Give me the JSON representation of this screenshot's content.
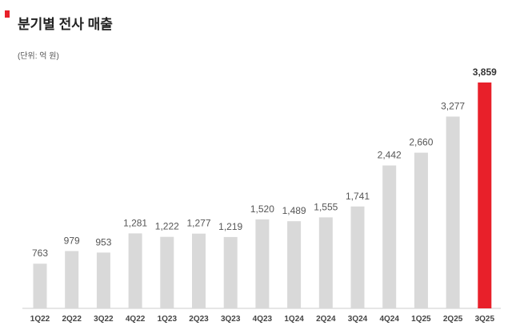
{
  "header": {
    "title": "분기별 전사 매출",
    "unit_note": "(단위: 억 원)"
  },
  "colors": {
    "accent": "#e8202a",
    "bar": "#d9d9d9",
    "highlight_bar": "#e8202a",
    "axis": "#cccccc"
  },
  "chart_data": {
    "type": "bar",
    "title": "분기별 전사 매출",
    "xlabel": "",
    "ylabel": "",
    "ylim": [
      0,
      4000
    ],
    "grid": false,
    "categories": [
      "1Q22",
      "2Q22",
      "3Q22",
      "4Q22",
      "1Q23",
      "2Q23",
      "3Q23",
      "4Q23",
      "1Q24",
      "2Q24",
      "3Q24",
      "4Q24",
      "1Q25",
      "2Q25",
      "3Q25"
    ],
    "values": [
      763,
      979,
      953,
      1281,
      1222,
      1277,
      1219,
      1520,
      1489,
      1555,
      1741,
      2442,
      2660,
      3277,
      3859
    ],
    "value_labels": [
      "763",
      "979",
      "953",
      "1,281",
      "1,222",
      "1,277",
      "1,219",
      "1,520",
      "1,489",
      "1,555",
      "1,741",
      "2,442",
      "2,660",
      "3,277",
      "3,859"
    ],
    "highlight_category": "3Q25"
  }
}
